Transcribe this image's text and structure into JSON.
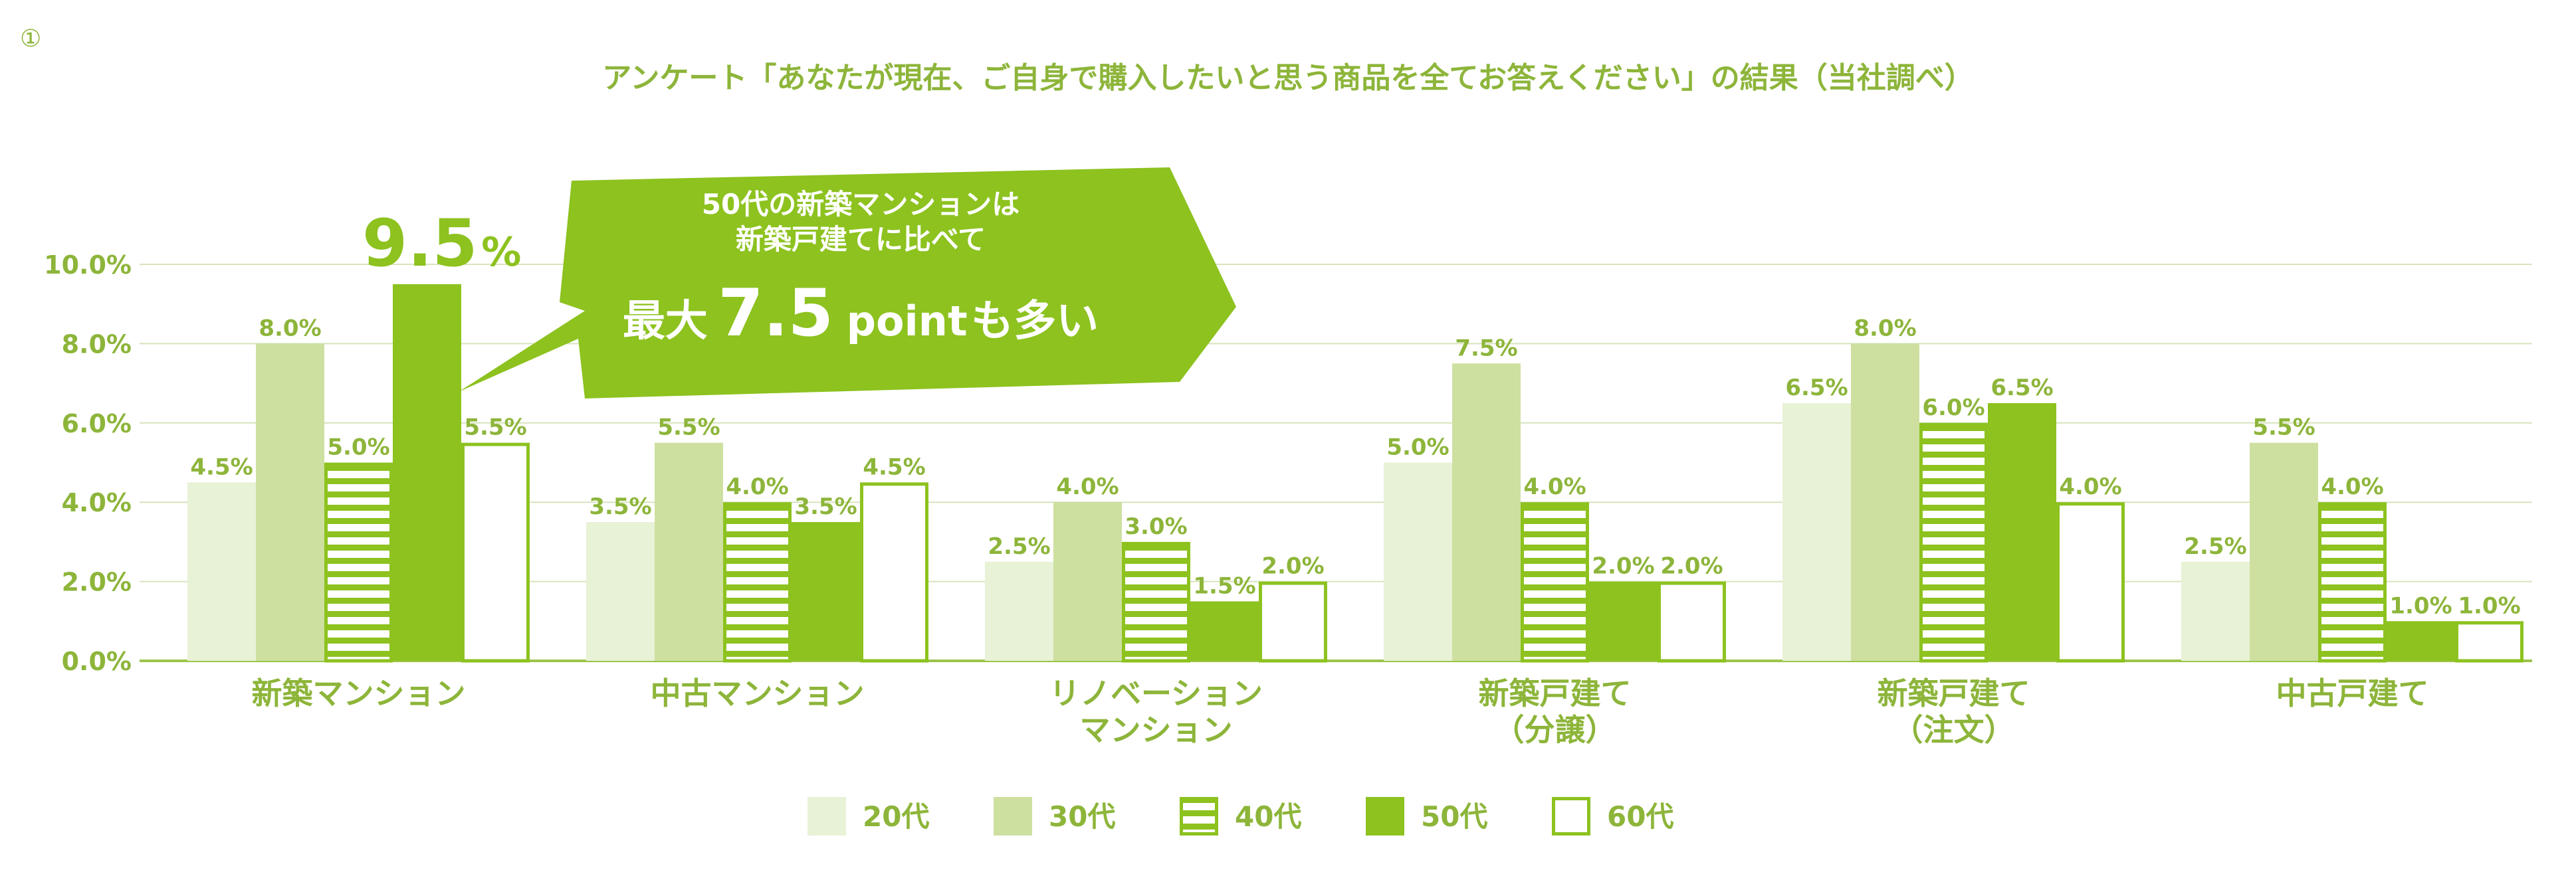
{
  "page": {
    "badge": "①"
  },
  "chart_data": {
    "type": "bar",
    "title": "アンケート「あなたが現在、ご自身で購入したいと思う商品を全てお答えください」の結果（当社調べ）",
    "categories": [
      [
        "新築マンション"
      ],
      [
        "中古マンション"
      ],
      [
        "リノベーション",
        "マンション"
      ],
      [
        "新築戸建て",
        "（分譲）"
      ],
      [
        "新築戸建て",
        "（注文）"
      ],
      [
        "中古戸建て"
      ]
    ],
    "series": [
      {
        "name": "20代",
        "values": [
          4.5,
          3.5,
          2.5,
          5.0,
          6.5,
          2.5
        ],
        "labels": [
          "4.5%",
          "3.5%",
          "2.5%",
          "5.0%",
          "6.5%",
          "2.5%"
        ],
        "fill": "#e8f2d6",
        "pattern": "solid"
      },
      {
        "name": "30代",
        "values": [
          8.0,
          5.5,
          4.0,
          7.5,
          8.0,
          5.5
        ],
        "labels": [
          "8.0%",
          "5.5%",
          "4.0%",
          "7.5%",
          "8.0%",
          "5.5%"
        ],
        "fill": "#cde0a0",
        "pattern": "solid"
      },
      {
        "name": "40代",
        "values": [
          5.0,
          4.0,
          3.0,
          4.0,
          6.0,
          4.0
        ],
        "labels": [
          "5.0%",
          "4.0%",
          "3.0%",
          "4.0%",
          "6.0%",
          "4.0%"
        ],
        "fill": "#8dc21f",
        "pattern": "stripes"
      },
      {
        "name": "50代",
        "values": [
          9.5,
          3.5,
          1.5,
          2.0,
          6.5,
          1.0
        ],
        "labels": [
          "9.5%",
          "3.5%",
          "1.5%",
          "2.0%",
          "6.5%",
          "1.0%"
        ],
        "fill": "#8dc21f",
        "pattern": "solid"
      },
      {
        "name": "60代",
        "values": [
          5.5,
          4.5,
          2.0,
          2.0,
          4.0,
          1.0
        ],
        "labels": [
          "5.5%",
          "4.5%",
          "2.0%",
          "2.0%",
          "4.0%",
          "1.0%"
        ],
        "fill": "#ffffff",
        "pattern": "outline"
      }
    ],
    "ylim": [
      0,
      10
    ],
    "yticks": [
      0,
      2,
      4,
      6,
      8,
      10
    ],
    "ytick_labels": [
      "0.0%",
      "2.0%",
      "4.0%",
      "6.0%",
      "8.0%",
      "10.0%"
    ],
    "grid": true,
    "legend_position": "bottom",
    "annotation": {
      "highlight_value": "9.5",
      "highlight_unit": "%",
      "line1": "50代の新築マンションは",
      "line2": "新築戸建てに比べて",
      "line3_prefix": "最大",
      "line3_number": "7.5",
      "line3_unit": "point",
      "line3_suffix": "も多い"
    },
    "colors": {
      "text": "#8db53a",
      "accent": "#8dc21f",
      "grid": "#d7e4be",
      "axis": "#9cc44a"
    }
  }
}
